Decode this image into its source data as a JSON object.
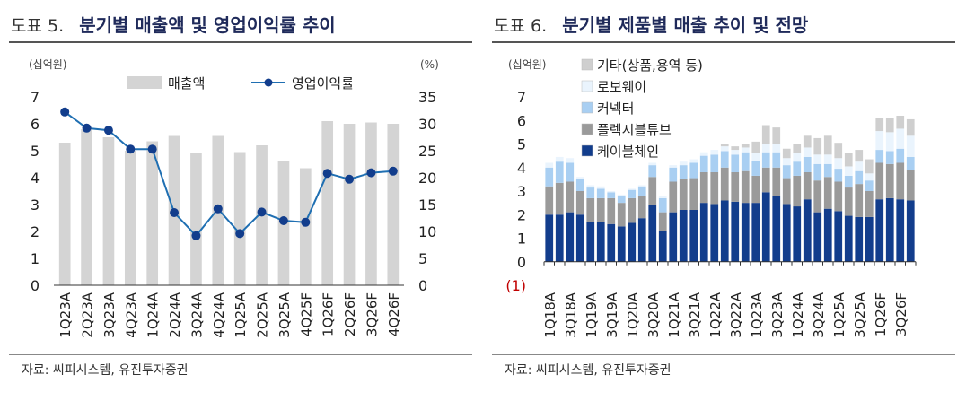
{
  "left": {
    "figure_label": "도표 5.",
    "title": "분기별 매출액 및 영업이익률 추이",
    "source": "자료: 씨피시스템, 유진투자증권",
    "chart_data": {
      "type": "bar+line",
      "title": "분기별 매출액 및 영업이익률 추이",
      "left_unit": "(십억원)",
      "right_unit": "(%)",
      "categories": [
        "1Q23A",
        "2Q23A",
        "3Q23A",
        "4Q23A",
        "1Q24A",
        "2Q24A",
        "3Q24A",
        "4Q24A",
        "1Q25A",
        "2Q25A",
        "3Q25A",
        "4Q25F",
        "1Q26F",
        "2Q26F",
        "3Q26F",
        "4Q26F"
      ],
      "y_left_ticks": [
        "0",
        "1",
        "2",
        "3",
        "4",
        "5",
        "6",
        "7"
      ],
      "y_right_ticks": [
        "0",
        "5",
        "10",
        "15",
        "20",
        "25",
        "30",
        "35"
      ],
      "ylim_left": [
        0,
        7
      ],
      "ylim_right": [
        0,
        35
      ],
      "series": [
        {
          "name": "매출액",
          "type": "bar",
          "axis": "left",
          "color": "#d4d4d4",
          "values": [
            5.3,
            5.8,
            5.5,
            5.0,
            5.35,
            5.55,
            4.9,
            5.55,
            4.95,
            5.2,
            4.6,
            4.35,
            6.1,
            6.0,
            6.05,
            6.0
          ]
        },
        {
          "name": "영업이익률",
          "type": "line",
          "axis": "right",
          "color": "#1f6fb2",
          "values": [
            32.2,
            29.2,
            28.8,
            25.3,
            25.3,
            13.5,
            9.2,
            14.2,
            9.6,
            13.6,
            12.0,
            11.7,
            20.8,
            19.7,
            20.9,
            21.2
          ]
        }
      ],
      "legend_position": "top"
    }
  },
  "right": {
    "figure_label": "도표 6.",
    "title": "분기별 제품별 매출 추이 및 전망",
    "source": "자료: 씨피시스템, 유진투자증권",
    "chart_data": {
      "type": "stacked-bar",
      "title": "분기별 제품별 매출 추이 및 전망",
      "unit": "(십억원)",
      "y_ticks": [
        "(1)",
        "0",
        "1",
        "2",
        "3",
        "4",
        "5",
        "6",
        "7"
      ],
      "ylim": [
        -1,
        7
      ],
      "categories": [
        "1Q18A",
        "2Q18A",
        "3Q18A",
        "4Q18A",
        "1Q19A",
        "2Q19A",
        "3Q19A",
        "4Q19A",
        "1Q20A",
        "2Q20A",
        "3Q20A",
        "4Q20A",
        "1Q21A",
        "2Q21A",
        "3Q21A",
        "4Q21A",
        "1Q22A",
        "2Q22A",
        "3Q22A",
        "4Q22A",
        "1Q23A",
        "2Q23A",
        "3Q23A",
        "4Q23A",
        "1Q24A",
        "2Q24A",
        "3Q24A",
        "4Q24A",
        "1Q25A",
        "2Q25A",
        "3Q25A",
        "4Q25F",
        "1Q26F",
        "2Q26F",
        "3Q26F",
        "4Q26F"
      ],
      "tick_labels": [
        "1Q18A",
        "3Q18A",
        "1Q19A",
        "3Q19A",
        "1Q20A",
        "3Q20A",
        "1Q21A",
        "3Q21A",
        "1Q22A",
        "3Q22A",
        "1Q23A",
        "3Q23A",
        "1Q24A",
        "3Q24A",
        "1Q25A",
        "3Q25A",
        "1Q26F",
        "3Q26F"
      ],
      "series": [
        {
          "name": "케이블체인",
          "color": "#123d8c",
          "values": [
            2.0,
            2.0,
            2.1,
            2.0,
            1.7,
            1.7,
            1.6,
            1.5,
            1.65,
            1.85,
            2.4,
            1.3,
            2.1,
            2.2,
            2.2,
            2.5,
            2.45,
            2.6,
            2.55,
            2.5,
            2.5,
            2.95,
            2.8,
            2.45,
            2.35,
            2.65,
            2.1,
            2.25,
            2.15,
            1.95,
            1.9,
            1.9,
            2.65,
            2.7,
            2.65,
            2.6
          ]
        },
        {
          "name": "플렉시블튜브",
          "color": "#9a9a9a",
          "values": [
            1.2,
            1.35,
            1.3,
            1.0,
            1.0,
            1.0,
            1.1,
            1.0,
            1.05,
            0.95,
            1.2,
            0.8,
            1.3,
            1.3,
            1.35,
            1.3,
            1.35,
            1.4,
            1.25,
            1.35,
            1.15,
            1.05,
            1.2,
            1.1,
            1.3,
            1.15,
            1.35,
            1.35,
            1.25,
            1.2,
            1.4,
            1.1,
            1.55,
            1.45,
            1.55,
            1.3
          ]
        },
        {
          "name": "커넥터",
          "color": "#a9cff2",
          "values": [
            0.8,
            0.9,
            0.8,
            0.5,
            0.45,
            0.4,
            0.25,
            0.3,
            0.35,
            0.4,
            0.5,
            0.6,
            0.6,
            0.6,
            0.65,
            0.7,
            0.75,
            0.7,
            0.75,
            0.8,
            0.65,
            0.65,
            0.65,
            0.55,
            0.6,
            0.65,
            0.7,
            0.55,
            0.55,
            0.5,
            0.55,
            0.45,
            0.55,
            0.55,
            0.6,
            0.55
          ]
        },
        {
          "name": "로보웨이",
          "color": "#eaf4fd",
          "values": [
            0.2,
            0.2,
            0.2,
            0.1,
            0.1,
            0.1,
            0.05,
            0.05,
            0.05,
            0.05,
            0.1,
            0.1,
            0.1,
            0.15,
            0.15,
            0.15,
            0.2,
            0.2,
            0.2,
            0.2,
            0.3,
            0.35,
            0.35,
            0.3,
            0.35,
            0.4,
            0.4,
            0.4,
            0.45,
            0.4,
            0.4,
            0.3,
            0.8,
            0.8,
            0.85,
            0.9
          ]
        },
        {
          "name": "기타(상품,용역 등)",
          "color": "#cfcfcf",
          "values": [
            0,
            0,
            0,
            0,
            0,
            0,
            0,
            0,
            0,
            0,
            0,
            0,
            0,
            0,
            0,
            0,
            0,
            0.1,
            0.15,
            0.15,
            0.5,
            0.8,
            0.7,
            0.4,
            0.4,
            0.5,
            0.7,
            0.8,
            0.65,
            0.55,
            0.5,
            0.6,
            0.55,
            0.6,
            0.55,
            0.7
          ]
        }
      ],
      "legend_position": "top-left"
    }
  }
}
